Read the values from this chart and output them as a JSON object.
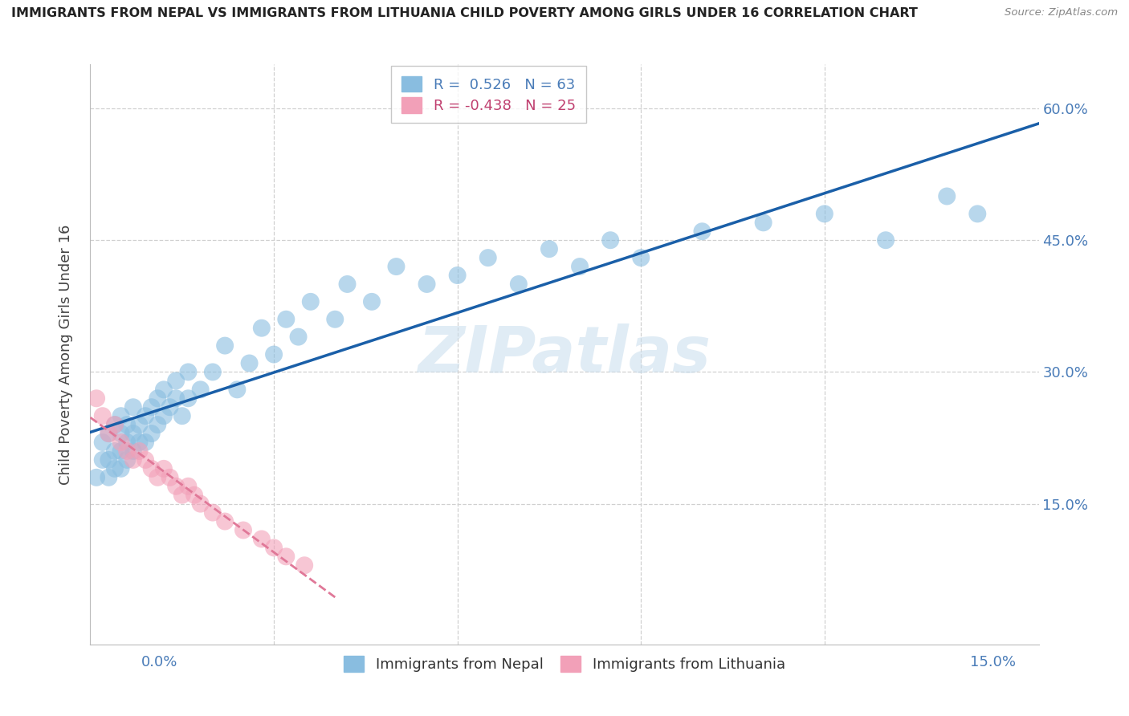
{
  "title": "IMMIGRANTS FROM NEPAL VS IMMIGRANTS FROM LITHUANIA CHILD POVERTY AMONG GIRLS UNDER 16 CORRELATION CHART",
  "source": "Source: ZipAtlas.com",
  "ylabel": "Child Poverty Among Girls Under 16",
  "yticks": [
    0.0,
    0.15,
    0.3,
    0.45,
    0.6
  ],
  "ytick_labels": [
    "",
    "15.0%",
    "30.0%",
    "45.0%",
    "60.0%"
  ],
  "xlim": [
    0.0,
    0.155
  ],
  "ylim": [
    -0.01,
    0.65
  ],
  "nepal_R": 0.526,
  "nepal_N": 63,
  "lithuania_R": -0.438,
  "lithuania_N": 25,
  "nepal_color": "#89bde0",
  "lithuania_color": "#f2a0b8",
  "nepal_line_color": "#1a5fa8",
  "lithuania_line_color": "#e07898",
  "watermark": "ZIPatlas",
  "watermark_color": "#c8dded",
  "nepal_x": [
    0.001,
    0.002,
    0.002,
    0.003,
    0.003,
    0.003,
    0.004,
    0.004,
    0.004,
    0.005,
    0.005,
    0.005,
    0.005,
    0.006,
    0.006,
    0.006,
    0.007,
    0.007,
    0.007,
    0.008,
    0.008,
    0.009,
    0.009,
    0.01,
    0.01,
    0.011,
    0.011,
    0.012,
    0.012,
    0.013,
    0.014,
    0.014,
    0.015,
    0.016,
    0.016,
    0.018,
    0.02,
    0.022,
    0.024,
    0.026,
    0.028,
    0.03,
    0.032,
    0.034,
    0.036,
    0.04,
    0.042,
    0.046,
    0.05,
    0.055,
    0.06,
    0.065,
    0.07,
    0.075,
    0.08,
    0.085,
    0.09,
    0.1,
    0.11,
    0.12,
    0.13,
    0.14,
    0.145
  ],
  "nepal_y": [
    0.18,
    0.2,
    0.22,
    0.18,
    0.2,
    0.23,
    0.19,
    0.21,
    0.24,
    0.19,
    0.21,
    0.23,
    0.25,
    0.2,
    0.22,
    0.24,
    0.21,
    0.23,
    0.26,
    0.22,
    0.24,
    0.22,
    0.25,
    0.23,
    0.26,
    0.24,
    0.27,
    0.25,
    0.28,
    0.26,
    0.27,
    0.29,
    0.25,
    0.27,
    0.3,
    0.28,
    0.3,
    0.33,
    0.28,
    0.31,
    0.35,
    0.32,
    0.36,
    0.34,
    0.38,
    0.36,
    0.4,
    0.38,
    0.42,
    0.4,
    0.41,
    0.43,
    0.4,
    0.44,
    0.42,
    0.45,
    0.43,
    0.46,
    0.47,
    0.48,
    0.45,
    0.5,
    0.48
  ],
  "lithuania_x": [
    0.001,
    0.002,
    0.003,
    0.004,
    0.005,
    0.006,
    0.007,
    0.008,
    0.009,
    0.01,
    0.011,
    0.012,
    0.013,
    0.014,
    0.015,
    0.016,
    0.017,
    0.018,
    0.02,
    0.022,
    0.025,
    0.028,
    0.03,
    0.032,
    0.035
  ],
  "lithuania_y": [
    0.27,
    0.25,
    0.23,
    0.24,
    0.22,
    0.21,
    0.2,
    0.21,
    0.2,
    0.19,
    0.18,
    0.19,
    0.18,
    0.17,
    0.16,
    0.17,
    0.16,
    0.15,
    0.14,
    0.13,
    0.12,
    0.11,
    0.1,
    0.09,
    0.08
  ]
}
